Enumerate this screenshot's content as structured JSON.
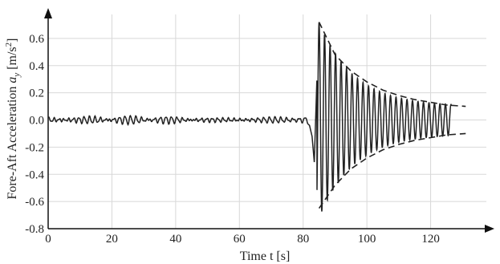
{
  "chart_data": {
    "type": "line",
    "xlabel": "Time t [s]",
    "ylabel": "Fore-Aft Acceleration a_y [m/s²]",
    "xlim": [
      0,
      140
    ],
    "ylim": [
      -0.8,
      0.8
    ],
    "x_ticks": [
      0,
      20,
      40,
      60,
      80,
      100,
      120
    ],
    "x_tick_labels": [
      "0",
      "20",
      "40",
      "60",
      "80",
      "100",
      "120"
    ],
    "y_ticks": [
      -0.8,
      -0.6,
      -0.4,
      -0.2,
      0.0,
      0.2,
      0.4,
      0.6
    ],
    "y_tick_labels": [
      "-0.8",
      "-0.6",
      "-0.4",
      "-0.2",
      "0.0",
      "0.2",
      "0.4",
      "0.6"
    ],
    "grid": true,
    "series": [
      {
        "style": "solid",
        "color": "#222222",
        "description_points": [
          [
            0,
            0.0
          ],
          [
            10,
            0.01
          ],
          [
            20,
            -0.01
          ],
          [
            25,
            0.03
          ],
          [
            30,
            -0.02
          ],
          [
            40,
            0.03
          ],
          [
            45,
            0.04
          ],
          [
            50,
            -0.02
          ],
          [
            60,
            0.01
          ],
          [
            70,
            0.0
          ],
          [
            80,
            0.01
          ],
          [
            82,
            -0.05
          ],
          [
            83.5,
            -0.31
          ],
          [
            85,
            0.72
          ],
          [
            86.5,
            -0.65
          ],
          [
            88,
            0.6
          ],
          [
            100,
            0.3
          ],
          [
            110,
            0.2
          ],
          [
            120,
            0.13
          ],
          [
            126,
            0.05
          ]
        ]
      },
      {
        "style": "dashed",
        "color": "#222222",
        "x": [
          85,
          90,
          95,
          100,
          105,
          110,
          115,
          120,
          125,
          131
        ],
        "upper": [
          0.72,
          0.48,
          0.36,
          0.28,
          0.22,
          0.18,
          0.15,
          0.13,
          0.11,
          0.1
        ],
        "lower": [
          -0.65,
          -0.48,
          -0.36,
          -0.28,
          -0.22,
          -0.18,
          -0.15,
          -0.13,
          -0.11,
          -0.1
        ]
      }
    ]
  }
}
